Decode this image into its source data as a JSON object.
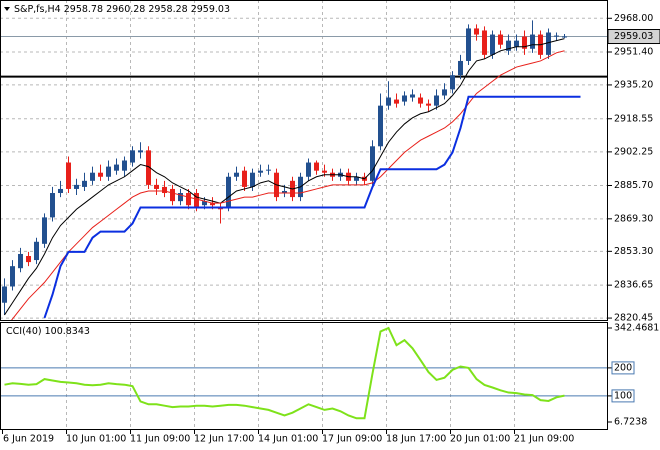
{
  "chart_data": [
    {
      "type": "candlestick",
      "title": "S&P,fs,H4",
      "categories": [
        "6 Jun 2019",
        null,
        null,
        null,
        null,
        null,
        null,
        null,
        "10 Jun 01:00",
        null,
        null,
        null,
        null,
        null,
        null,
        null,
        "11 Jun 09:00",
        null,
        null,
        null,
        null,
        null,
        null,
        null,
        "12 Jun 17:00",
        null,
        null,
        null,
        null,
        null,
        null,
        null,
        "14 Jun 01:00",
        null,
        null,
        null,
        null,
        null,
        null,
        null,
        "17 Jun 09:00",
        null,
        null,
        null,
        null,
        null,
        null,
        null,
        "18 Jun 17:00",
        null,
        null,
        null,
        null,
        null,
        null,
        null,
        "20 Jun 01:00",
        null,
        null,
        null,
        null,
        null,
        null,
        null,
        "21 Jun 09:00",
        null,
        null,
        null,
        null,
        null,
        null
      ],
      "open": [
        2828,
        2836,
        2845,
        2851,
        2849,
        2857,
        2870,
        2882,
        2897,
        2884,
        2885,
        2888,
        2892,
        2890,
        2893,
        2893,
        2897,
        2902,
        2903,
        2886,
        2885,
        2884,
        2878,
        2882,
        2882,
        2876,
        2877,
        2875,
        2875,
        2890,
        2893,
        2885,
        2892,
        2893,
        2892,
        2882,
        2888,
        2880,
        2890,
        2897,
        2893,
        2892,
        2890,
        2892,
        2888,
        2890,
        2888,
        2905,
        2925,
        2928,
        2927,
        2929,
        2929,
        2926,
        2925,
        2930,
        2933,
        2940,
        2947,
        2963,
        2962,
        2950,
        2960,
        2952,
        2954,
        2959,
        2953,
        2960,
        2950,
        2959,
        2958.78
      ],
      "high": [
        2840,
        2849,
        2855,
        2853,
        2860,
        2872,
        2885,
        2888,
        2900,
        2889,
        2892,
        2895,
        2896,
        2898,
        2899,
        2900,
        2905,
        2907,
        2905,
        2889,
        2888,
        2886,
        2884,
        2884,
        2884,
        2880,
        2880,
        2877,
        2892,
        2895,
        2895,
        2894,
        2896,
        2896,
        2894,
        2886,
        2890,
        2892,
        2899,
        2898,
        2896,
        2894,
        2894,
        2894,
        2892,
        2892,
        2908,
        2931,
        2937,
        2931,
        2932,
        2933,
        2931,
        2928,
        2933,
        2936,
        2942,
        2950,
        2965,
        2965,
        2964,
        2962,
        2962,
        2960,
        2960,
        2962,
        2967,
        2962,
        2963,
        2961,
        2960.28
      ],
      "low": [
        2822,
        2834,
        2843,
        2846,
        2847,
        2855,
        2868,
        2880,
        2882,
        2881,
        2883,
        2886,
        2888,
        2888,
        2891,
        2890,
        2895,
        2899,
        2884,
        2881,
        2880,
        2876,
        2876,
        2874,
        2873,
        2874,
        2874,
        2867,
        2873,
        2888,
        2883,
        2883,
        2890,
        2891,
        2878,
        2880,
        2878,
        2878,
        2888,
        2891,
        2890,
        2888,
        2888,
        2886,
        2886,
        2886,
        2886,
        2903,
        2923,
        2924,
        2925,
        2927,
        2924,
        2922,
        2923,
        2928,
        2931,
        2938,
        2945,
        2957,
        2948,
        2948,
        2953,
        2950,
        2952,
        2950,
        2951,
        2948,
        2948,
        2957,
        2958.28
      ],
      "close": [
        2836,
        2846,
        2852,
        2848,
        2858,
        2870,
        2882,
        2884,
        2884,
        2886,
        2888,
        2892,
        2890,
        2895,
        2896,
        2898,
        2903,
        2903,
        2886,
        2884,
        2882,
        2878,
        2882,
        2876,
        2875,
        2878,
        2876,
        2874,
        2890,
        2892,
        2885,
        2892,
        2893,
        2893.5,
        2880,
        2883,
        2880,
        2890,
        2897,
        2893,
        2892,
        2890,
        2892,
        2888,
        2890,
        2888,
        2905,
        2925,
        2929,
        2926,
        2930,
        2930.5,
        2926,
        2925,
        2930,
        2933,
        2940,
        2947,
        2963,
        2960,
        2950,
        2960,
        2955,
        2957,
        2957,
        2953,
        2960,
        2950,
        2961,
        2959.5,
        2959.03
      ],
      "up_color": "#22508f",
      "down_color": "#e8201a",
      "overlays": [
        {
          "color": "#000000",
          "values": [
            2822,
            2828,
            2834,
            2840,
            2845,
            2852,
            2860,
            2866,
            2870,
            2874,
            2877,
            2880,
            2883,
            2886,
            2888,
            2890,
            2893,
            2896,
            2895,
            2892,
            2890,
            2887,
            2885,
            2883,
            2880,
            2879,
            2878,
            2877,
            2880,
            2883,
            2884,
            2885,
            2887,
            2888,
            2886,
            2885,
            2884,
            2885,
            2888,
            2890,
            2891,
            2891,
            2891,
            2890,
            2890,
            2889,
            2893,
            2900,
            2907,
            2912,
            2916,
            2919,
            2921,
            2922,
            2924,
            2926,
            2930,
            2935,
            2942,
            2947,
            2948,
            2950,
            2952,
            2953,
            2954,
            2954,
            2955,
            2955,
            2956,
            2957,
            2958
          ]
        },
        {
          "color": "#e8201a",
          "values": [
            2815,
            2820,
            2825,
            2830,
            2834,
            2838,
            2843,
            2848,
            2853,
            2857,
            2861,
            2865,
            2868,
            2871,
            2874,
            2877,
            2880,
            2882,
            2883,
            2883,
            2883,
            2882,
            2881,
            2880,
            2879,
            2878,
            2877,
            2877,
            2878,
            2879,
            2880,
            2880,
            2881,
            2882,
            2882,
            2882,
            2882,
            2882,
            2883,
            2884,
            2885,
            2886,
            2886,
            2886,
            2886,
            2886,
            2887,
            2890,
            2894,
            2898,
            2902,
            2905,
            2908,
            2910,
            2912,
            2914,
            2917,
            2921,
            2926,
            2931,
            2934,
            2937,
            2940,
            2942,
            2944,
            2945,
            2946,
            2947,
            2949,
            2951,
            2952
          ]
        },
        {
          "color": "#0b2fe0",
          "width": 2,
          "values": [
            null,
            null,
            null,
            null,
            null,
            2820.5,
            2832,
            2846,
            2853,
            2853,
            2853,
            2860,
            2863,
            2863,
            2863,
            2863,
            2867,
            2874.9,
            2874.9,
            2874.9,
            2874.9,
            2874.9,
            2874.9,
            2874.9,
            2874.9,
            2874.9,
            2874.9,
            2874.9,
            2874.9,
            2874.9,
            2874.9,
            2874.9,
            2874.9,
            2874.9,
            2874.9,
            2874.9,
            2874.9,
            2874.9,
            2874.9,
            2874.9,
            2874.9,
            2874.9,
            2874.9,
            2874.9,
            2874.9,
            2874.9,
            2885,
            2893.7,
            2893.7,
            2893.7,
            2893.7,
            2893.7,
            2893.7,
            2893.7,
            2893.7,
            2896,
            2902,
            2914,
            2929.4,
            2929.4,
            2929.4,
            2929.4,
            2929.4,
            2929.4,
            2929.4,
            2929.4,
            2929.4,
            2929.4,
            2929.4,
            2929.4,
            2929.4,
            2929.4,
            2929.4
          ]
        }
      ],
      "level": 2939.3,
      "level_color": "#000000",
      "ylim": [
        2819.5,
        2977
      ],
      "yticks": [
        {
          "value": 2968,
          "label": "2968.00"
        },
        {
          "value": 2951.4,
          "label": "2951.40"
        },
        {
          "value": 2935.2,
          "label": "2935.20"
        },
        2918.55,
        2902.25,
        {
          "value": 2885.7,
          "label": "2885.70"
        },
        {
          "value": 2869.3,
          "label": "2869.30"
        },
        {
          "value": 2853.3,
          "label": "2853.30"
        },
        2836.65,
        2820.45
      ],
      "grid": true
    },
    {
      "type": "line",
      "title": "CCI(40)",
      "color": "#7ee21a",
      "values": [
        140,
        145,
        143,
        140,
        142,
        160,
        155,
        150,
        148,
        145,
        140,
        138,
        140,
        145,
        142,
        140,
        135,
        80,
        70,
        70,
        65,
        60,
        62,
        62,
        65,
        65,
        62,
        65,
        68,
        68,
        65,
        60,
        55,
        50,
        40,
        30,
        40,
        55,
        70,
        60,
        50,
        55,
        45,
        30,
        20,
        20,
        180,
        330,
        342.4681,
        281,
        299,
        270,
        228,
        185,
        157,
        165,
        193,
        205,
        200,
        160,
        139,
        130,
        120,
        112,
        110,
        105,
        103,
        85,
        82,
        95,
        100.8343
      ],
      "levels": [
        200,
        100
      ],
      "level_color": "#4a7ab0",
      "ylim": [
        -21.8,
        363.9
      ],
      "yticks": [
        342.4681,
        200,
        100,
        6.7238
      ],
      "grid": true
    }
  ]
}
